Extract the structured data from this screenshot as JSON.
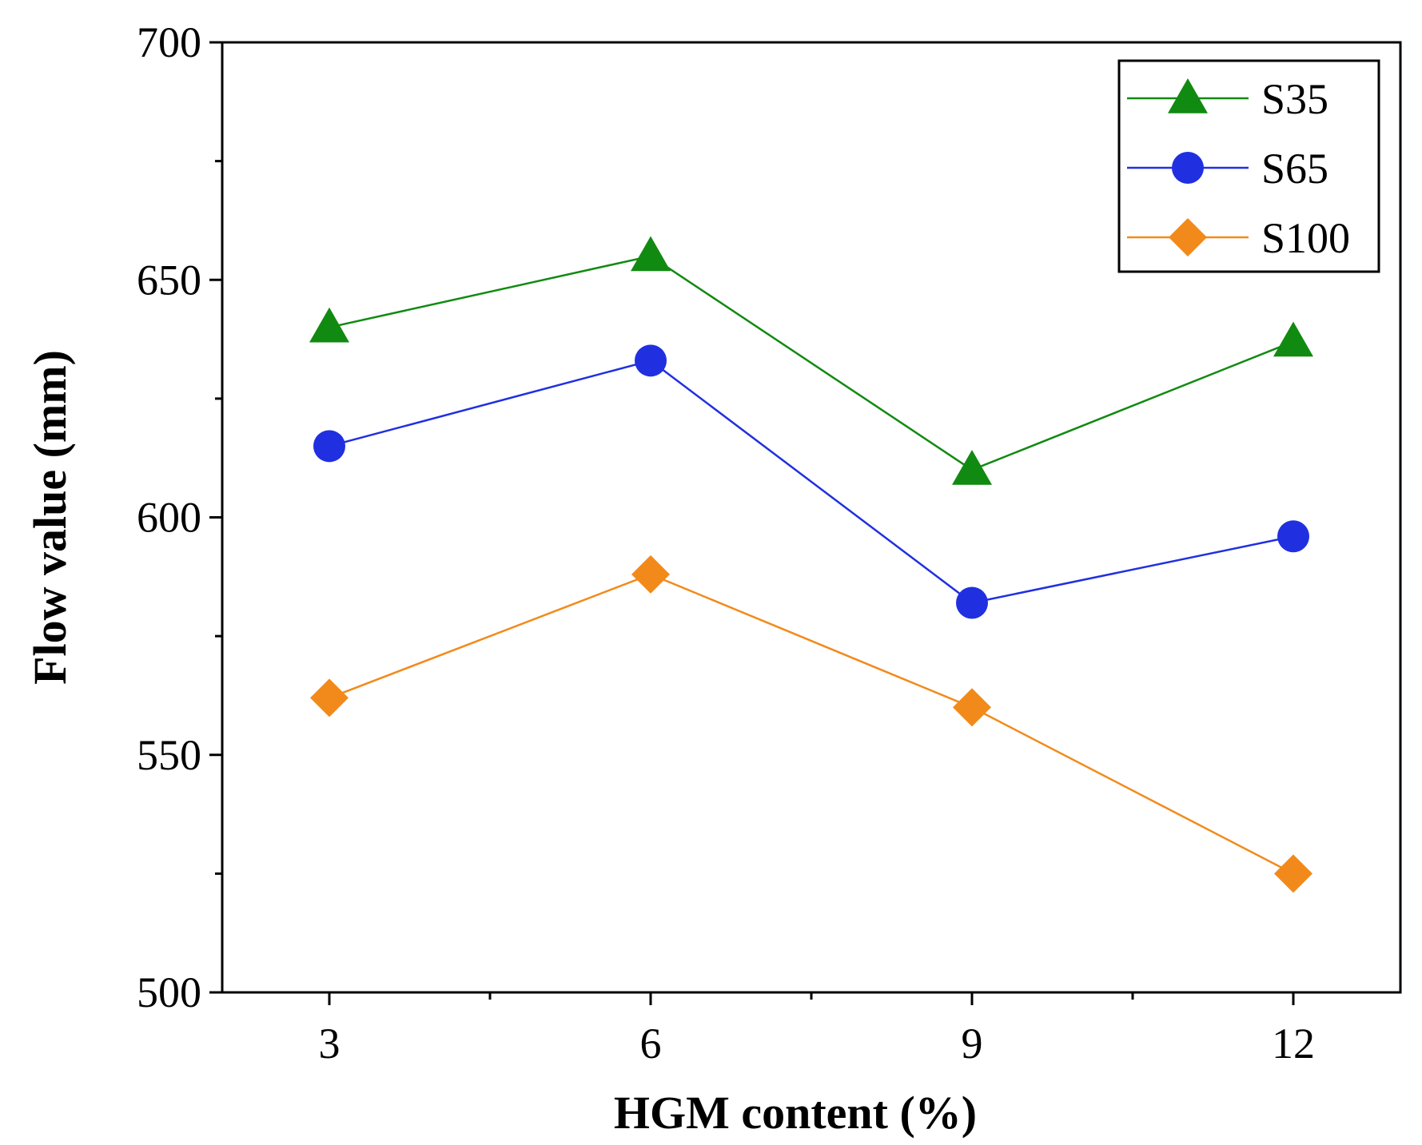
{
  "chart_data": {
    "type": "line",
    "title": "",
    "xlabel": "HGM content (%)",
    "ylabel": "Flow value (mm)",
    "x": [
      3,
      6,
      9,
      12
    ],
    "x_tick_labels": [
      "3",
      "6",
      "9",
      "12"
    ],
    "xlim": [
      2,
      13
    ],
    "ylim": [
      500,
      700
    ],
    "y_ticks": [
      500,
      550,
      600,
      650,
      700
    ],
    "y_tick_labels": [
      "500",
      "550",
      "600",
      "650",
      "700"
    ],
    "grid": false,
    "legend_position": "top-right",
    "series": [
      {
        "name": "S35",
        "marker": "triangle",
        "color": "#118a11",
        "values": [
          640,
          655,
          610,
          637
        ]
      },
      {
        "name": "S65",
        "marker": "circle",
        "color": "#2030e0",
        "values": [
          615,
          633,
          582,
          596
        ]
      },
      {
        "name": "S100",
        "marker": "diamond",
        "color": "#f28a1b",
        "values": [
          562,
          588,
          560,
          525
        ]
      }
    ]
  }
}
